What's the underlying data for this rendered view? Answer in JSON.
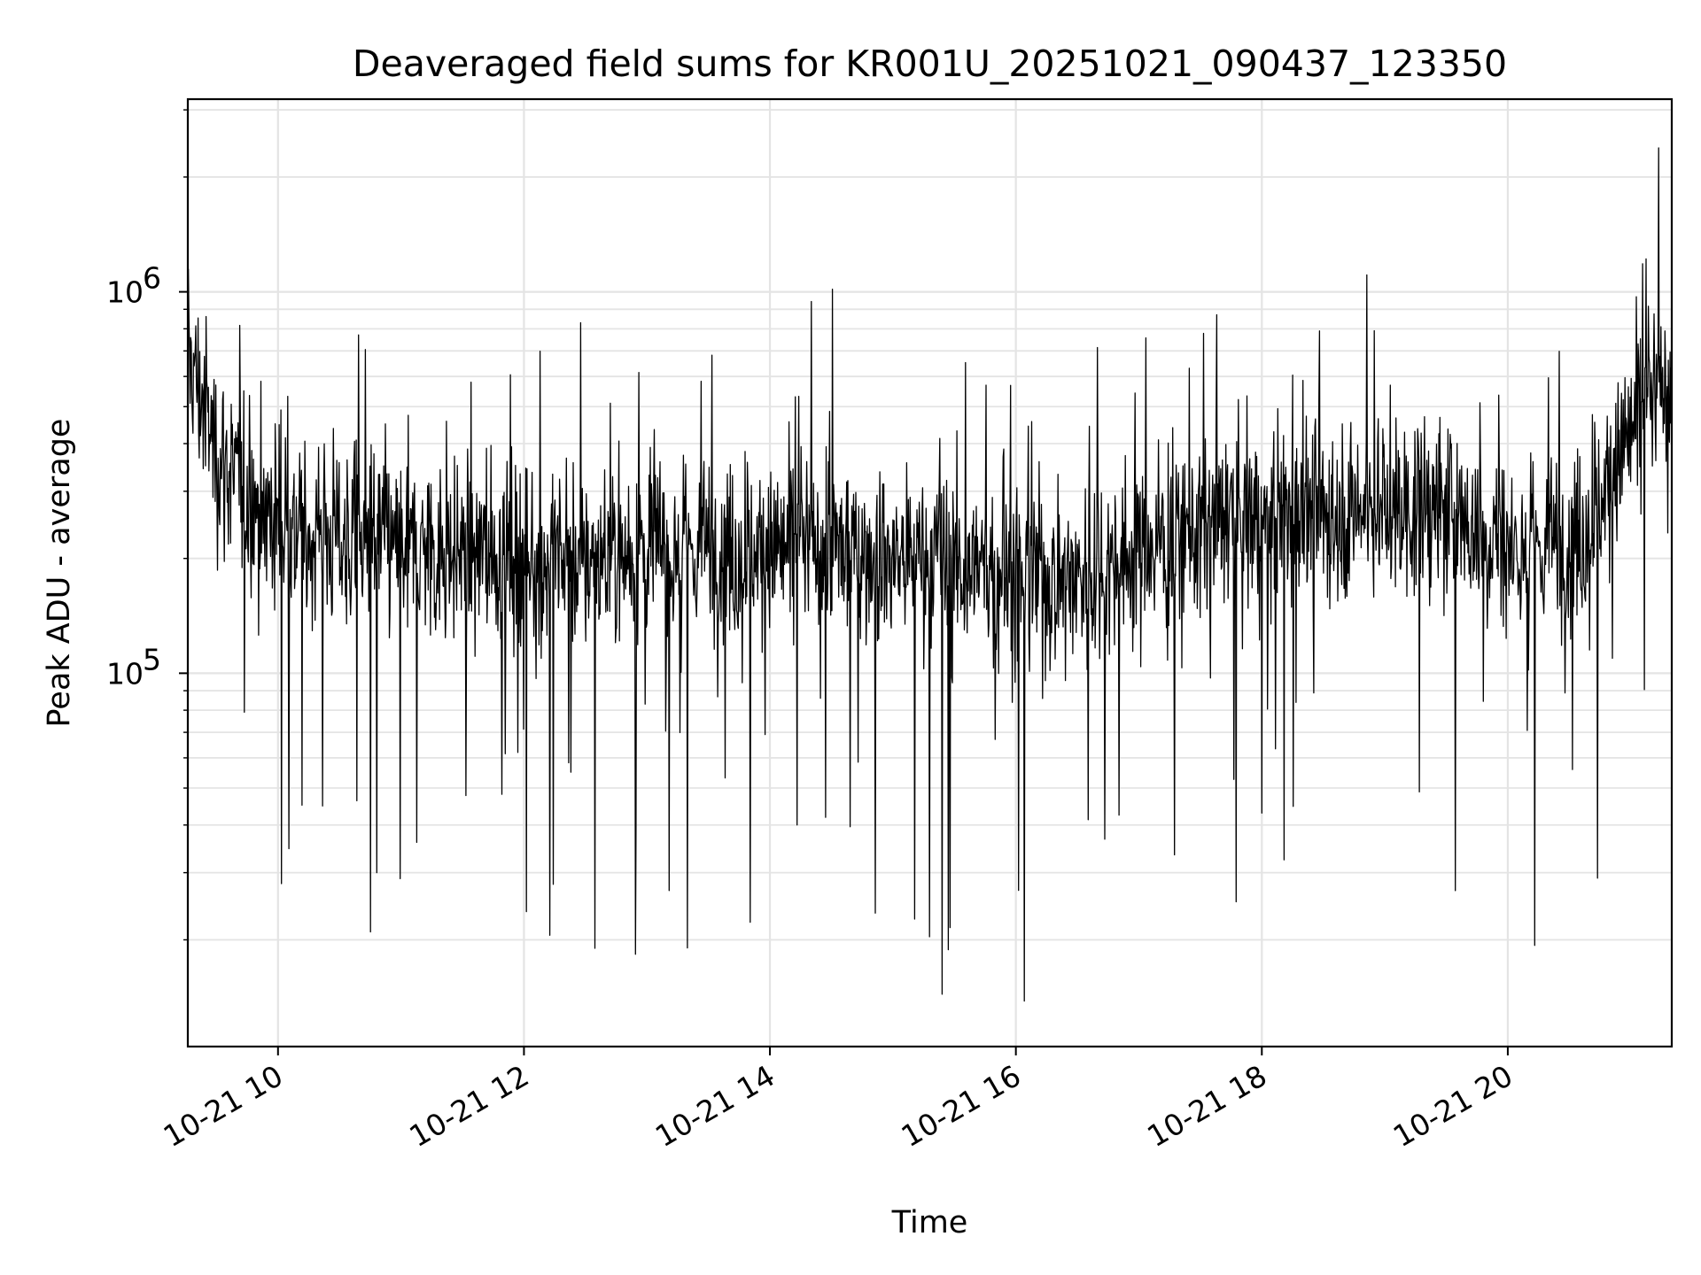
{
  "chart_data": {
    "type": "line",
    "title": "Deaveraged field sums for KR001U_20251021_090437_123350",
    "xlabel": "Time",
    "ylabel": "Peak ADU - average",
    "xscale": "time",
    "yscale": "log",
    "xlim": [
      "2025-10-21 09:16",
      "2025-10-21 21:20"
    ],
    "ylim": [
      10500,
      3200000
    ],
    "grid": true,
    "x_ticks": [
      {
        "value": "2025-10-21 10:00",
        "label": "10-21 10"
      },
      {
        "value": "2025-10-21 12:00",
        "label": "10-21 12"
      },
      {
        "value": "2025-10-21 14:00",
        "label": "10-21 14"
      },
      {
        "value": "2025-10-21 16:00",
        "label": "10-21 16"
      },
      {
        "value": "2025-10-21 18:00",
        "label": "10-21 18"
      },
      {
        "value": "2025-10-21 20:00",
        "label": "10-21 20"
      }
    ],
    "y_ticks": [
      {
        "value": 100000,
        "base": "10",
        "exp": "5"
      },
      {
        "value": 1000000,
        "base": "10",
        "exp": "6"
      }
    ],
    "series": [
      {
        "color": "#000000",
        "x": [
          "2025-10-21 09:16",
          "2025-10-21 09:30",
          "2025-10-21 09:45",
          "2025-10-21 10:00",
          "2025-10-21 10:30",
          "2025-10-21 11:00",
          "2025-10-21 11:30",
          "2025-10-21 12:00",
          "2025-10-21 12:30",
          "2025-10-21 13:00",
          "2025-10-21 13:30",
          "2025-10-21 14:00",
          "2025-10-21 14:30",
          "2025-10-21 15:00",
          "2025-10-21 15:30",
          "2025-10-21 16:00",
          "2025-10-21 16:30",
          "2025-10-21 17:00",
          "2025-10-21 17:30",
          "2025-10-21 18:00",
          "2025-10-21 18:30",
          "2025-10-21 19:00",
          "2025-10-21 19:30",
          "2025-10-21 20:00",
          "2025-10-21 20:30",
          "2025-10-21 20:45",
          "2025-10-21 21:00",
          "2025-10-21 21:20"
        ],
        "y": [
          700000,
          380000,
          290000,
          250000,
          230000,
          215000,
          205000,
          200000,
          195000,
          215000,
          210000,
          210000,
          215000,
          200000,
          195000,
          175000,
          180000,
          210000,
          240000,
          255000,
          265000,
          270000,
          265000,
          215000,
          215000,
          280000,
          430000,
          600000
        ]
      }
    ]
  }
}
